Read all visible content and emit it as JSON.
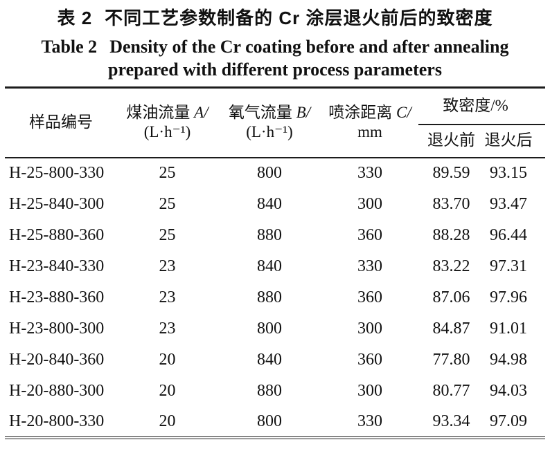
{
  "caption": {
    "zh_label": "表 2",
    "zh_title": "不同工艺参数制备的 Cr 涂层退火前后的致密度",
    "en_label": "Table 2",
    "en_line1": "Density of the Cr coating before and after annealing",
    "en_line2": "prepared with different process parameters"
  },
  "table": {
    "columns": {
      "sample": "样品编号",
      "kerosene_zh": "煤油流量",
      "kerosene_var": "A/",
      "kerosene_unit": "(L·h⁻¹)",
      "oxygen_zh": "氧气流量",
      "oxygen_var": "B/",
      "oxygen_unit": "(L·h⁻¹)",
      "distance_zh": "喷涂距离",
      "distance_var": "C/",
      "distance_unit": "mm",
      "density_group": "致密度/%",
      "before": "退火前",
      "after": "退火后"
    },
    "rows": [
      {
        "id": "H-25-800-330",
        "a": "25",
        "b": "800",
        "c": "330",
        "before": "89.59",
        "after": "93.15"
      },
      {
        "id": "H-25-840-300",
        "a": "25",
        "b": "840",
        "c": "300",
        "before": "83.70",
        "after": "93.47"
      },
      {
        "id": "H-25-880-360",
        "a": "25",
        "b": "880",
        "c": "360",
        "before": "88.28",
        "after": "96.44"
      },
      {
        "id": "H-23-840-330",
        "a": "23",
        "b": "840",
        "c": "330",
        "before": "83.22",
        "after": "97.31"
      },
      {
        "id": "H-23-880-360",
        "a": "23",
        "b": "880",
        "c": "360",
        "before": "87.06",
        "after": "97.96"
      },
      {
        "id": "H-23-800-300",
        "a": "23",
        "b": "800",
        "c": "300",
        "before": "84.87",
        "after": "91.01"
      },
      {
        "id": "H-20-840-360",
        "a": "20",
        "b": "840",
        "c": "360",
        "before": "77.80",
        "after": "94.98"
      },
      {
        "id": "H-20-880-300",
        "a": "20",
        "b": "880",
        "c": "300",
        "before": "80.77",
        "after": "94.03"
      },
      {
        "id": "H-20-800-330",
        "a": "20",
        "b": "800",
        "c": "330",
        "before": "93.34",
        "after": "97.09"
      }
    ]
  },
  "colors": {
    "background": "#ffffff",
    "text": "#111111",
    "rule": "#1c1c1c"
  }
}
